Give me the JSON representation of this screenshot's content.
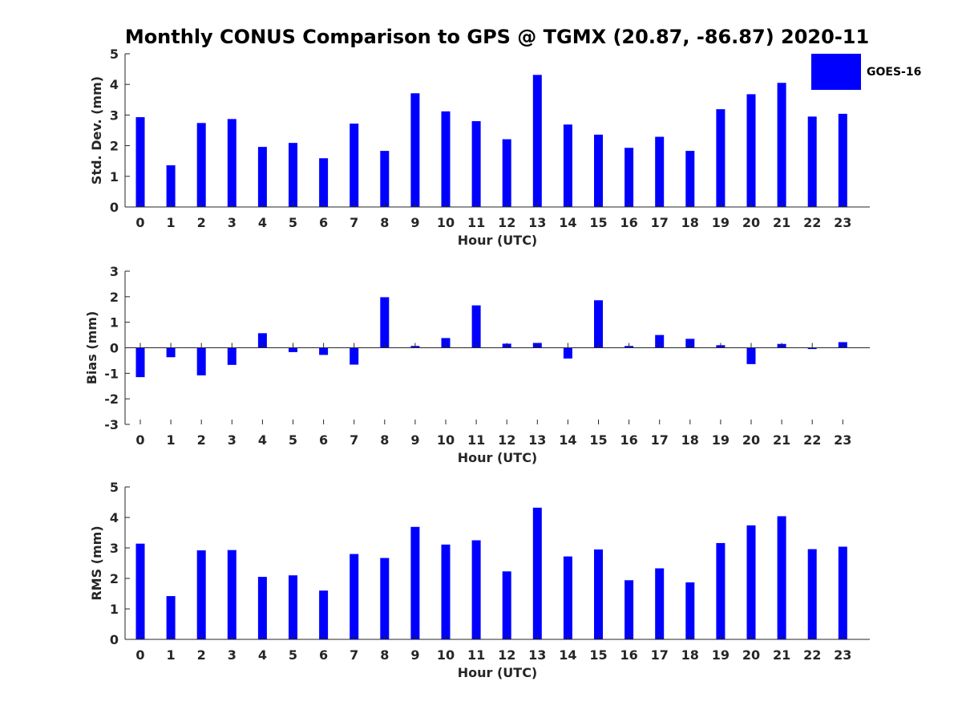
{
  "chart_data": {
    "title": "Monthly CONUS Comparison to GPS @ TGMX (20.87, -86.87) 2020-11",
    "series_color": "#0000ff",
    "legend": {
      "label": "GOES-16",
      "placement": "top-right"
    },
    "panels": [
      {
        "type": "bar",
        "ylabel": "Std. Dev. (mm)",
        "xlabel": "Hour (UTC)",
        "ylim": [
          0,
          5
        ],
        "yticks": [
          0,
          1,
          2,
          3,
          4,
          5
        ],
        "categories": [
          "0",
          "1",
          "2",
          "3",
          "4",
          "5",
          "6",
          "7",
          "8",
          "9",
          "10",
          "11",
          "12",
          "13",
          "14",
          "15",
          "16",
          "17",
          "18",
          "19",
          "20",
          "21",
          "22",
          "23"
        ],
        "series": [
          {
            "name": "GOES-16",
            "values": [
              2.93,
              1.36,
              2.74,
              2.87,
              1.96,
              2.09,
              1.59,
              2.72,
              1.83,
              3.71,
              3.12,
              2.8,
              2.21,
              4.31,
              2.69,
              2.36,
              1.93,
              2.29,
              1.83,
              3.19,
              3.68,
              4.05,
              2.95,
              3.04
            ]
          }
        ]
      },
      {
        "type": "bar",
        "ylabel": "Bias (mm)",
        "xlabel": "Hour (UTC)",
        "ylim": [
          -3,
          3
        ],
        "yticks": [
          -3,
          -2,
          -1,
          0,
          1,
          2,
          3
        ],
        "categories": [
          "0",
          "1",
          "2",
          "3",
          "4",
          "5",
          "6",
          "7",
          "8",
          "9",
          "10",
          "11",
          "12",
          "13",
          "14",
          "15",
          "16",
          "17",
          "18",
          "19",
          "20",
          "21",
          "22",
          "23"
        ],
        "series": [
          {
            "name": "GOES-16",
            "values": [
              -1.15,
              -0.37,
              -1.08,
              -0.67,
              0.57,
              -0.17,
              -0.28,
              -0.66,
              1.98,
              0.07,
              0.38,
              1.66,
              0.16,
              0.19,
              -0.42,
              1.86,
              0.07,
              0.5,
              0.35,
              0.1,
              -0.64,
              0.15,
              -0.05,
              0.22
            ]
          }
        ]
      },
      {
        "type": "bar",
        "ylabel": "RMS (mm)",
        "xlabel": "Hour (UTC)",
        "ylim": [
          0,
          5
        ],
        "yticks": [
          0,
          1,
          2,
          3,
          4,
          5
        ],
        "categories": [
          "0",
          "1",
          "2",
          "3",
          "4",
          "5",
          "6",
          "7",
          "8",
          "9",
          "10",
          "11",
          "12",
          "13",
          "14",
          "15",
          "16",
          "17",
          "18",
          "19",
          "20",
          "21",
          "22",
          "23"
        ],
        "series": [
          {
            "name": "GOES-16",
            "values": [
              3.14,
              1.42,
              2.92,
              2.93,
              2.05,
              2.1,
              1.6,
              2.8,
              2.67,
              3.69,
              3.11,
              3.25,
              2.23,
              4.32,
              2.72,
              2.95,
              1.94,
              2.33,
              1.87,
              3.16,
              3.74,
              4.04,
              2.96,
              3.04
            ]
          }
        ]
      }
    ]
  }
}
